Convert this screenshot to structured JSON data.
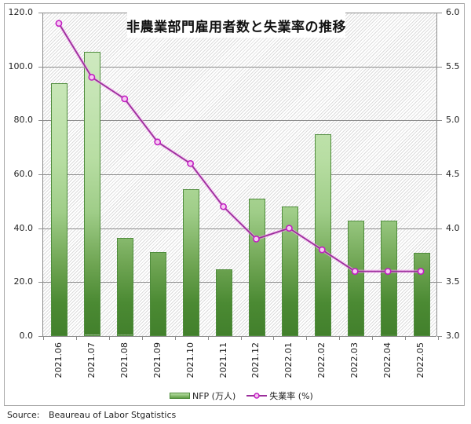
{
  "chart_data": {
    "type": "bar+line",
    "title": "非農業部門雇用者数と失業率の推移",
    "categories": [
      "2021.06",
      "2021.07",
      "2021.08",
      "2021.09",
      "2021.10",
      "2021.11",
      "2021.12",
      "2022.01",
      "2022.02",
      "2022.03",
      "2022.04",
      "2022.05"
    ],
    "series": [
      {
        "name": "NFP (万人)",
        "type": "bar",
        "axis": "left",
        "color": "#6fa553",
        "values": [
          93.8,
          105.3,
          36.3,
          31.2,
          54.6,
          24.9,
          51.0,
          48.1,
          75.0,
          42.8,
          42.8,
          30.9
        ]
      },
      {
        "name": "失業率 (%)",
        "type": "line",
        "axis": "right",
        "color": "#9b2f9b",
        "values": [
          5.9,
          5.4,
          5.2,
          4.8,
          4.6,
          4.2,
          3.9,
          4.0,
          3.8,
          3.6,
          3.6,
          3.6
        ]
      }
    ],
    "y_left": {
      "ylim": [
        0,
        120
      ],
      "ticks": [
        "0.0",
        "20.0",
        "40.0",
        "60.0",
        "80.0",
        "100.0",
        "120.0"
      ]
    },
    "y_right": {
      "ylim": [
        3.0,
        6.0
      ],
      "ticks": [
        "3.0",
        "3.5",
        "4.0",
        "4.5",
        "5.0",
        "5.5",
        "6.0"
      ]
    },
    "xlabel": "",
    "ylabel": "",
    "grid": true,
    "legend_position": "bottom"
  },
  "legend": {
    "bar_label": "NFP (万人)",
    "line_label": "失業率 (%)"
  },
  "source": {
    "label": "Source:",
    "text": "Beaureau of Labor Stgatistics"
  }
}
